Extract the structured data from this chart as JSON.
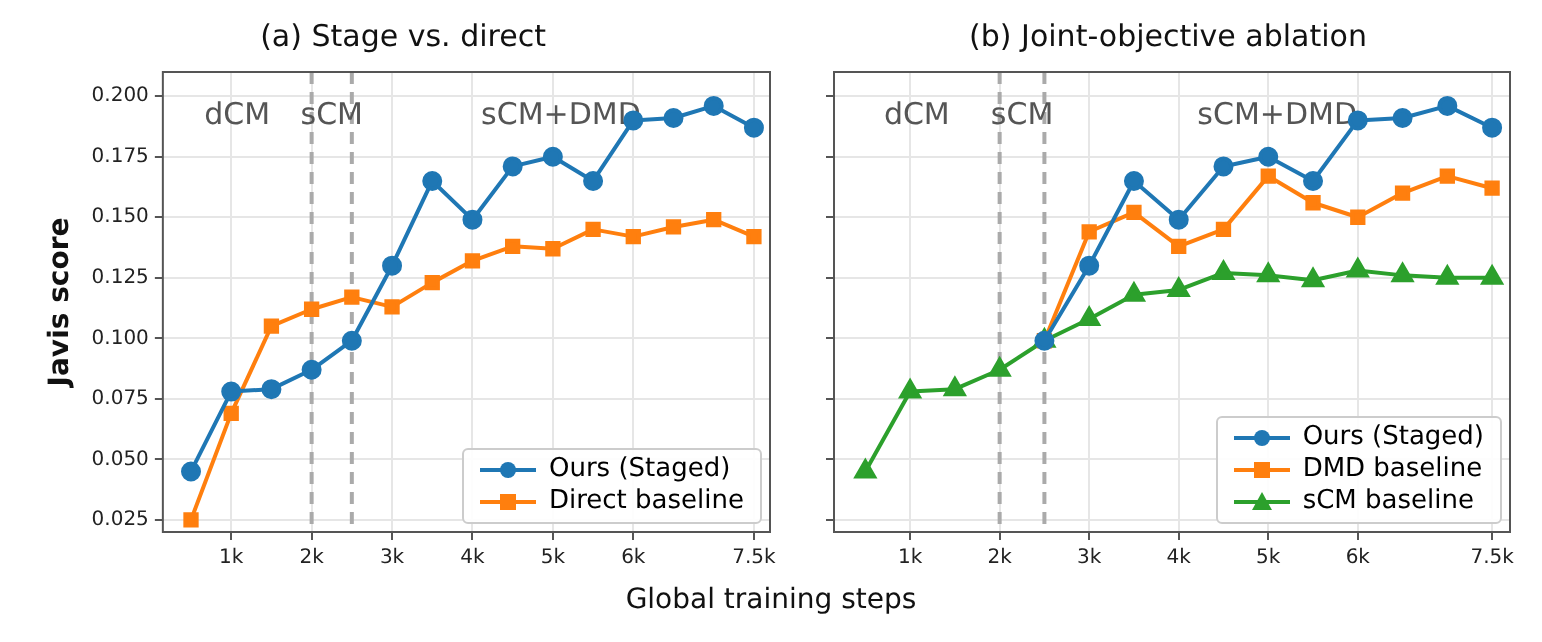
{
  "chart_data": [
    {
      "type": "line",
      "title": "(a) Stage vs. direct",
      "ylabel": "Javis score",
      "xlabel": "Global training steps",
      "x": [
        500,
        1000,
        1500,
        2000,
        2500,
        3000,
        3500,
        4000,
        4500,
        5000,
        5500,
        6000,
        6500,
        7000,
        7500
      ],
      "series": [
        {
          "name": "Ours (Staged)",
          "color": "#1f77b4",
          "marker": "circle",
          "values": [
            0.045,
            0.078,
            0.079,
            0.087,
            0.099,
            0.13,
            0.165,
            0.149,
            0.171,
            0.175,
            0.165,
            0.19,
            0.191,
            0.196,
            0.187
          ]
        },
        {
          "name": "Direct baseline",
          "color": "#ff7f0e",
          "marker": "square",
          "values": [
            0.025,
            0.069,
            0.105,
            0.112,
            0.117,
            0.113,
            0.123,
            0.132,
            0.138,
            0.137,
            0.145,
            0.142,
            0.146,
            0.149,
            0.142
          ]
        }
      ],
      "xlim": [
        150,
        7700
      ],
      "xticks": [
        {
          "value": 1000,
          "label": "1k"
        },
        {
          "value": 2000,
          "label": "2k"
        },
        {
          "value": 3000,
          "label": "3k"
        },
        {
          "value": 4000,
          "label": "4k"
        },
        {
          "value": 5000,
          "label": "5k"
        },
        {
          "value": 6000,
          "label": "6k"
        },
        {
          "value": 7500,
          "label": "7.5k"
        }
      ],
      "ylim": [
        0.02,
        0.21
      ],
      "yticks": [
        {
          "value": 0.025,
          "label": "0.025"
        },
        {
          "value": 0.05,
          "label": "0.050"
        },
        {
          "value": 0.075,
          "label": "0.075"
        },
        {
          "value": 0.1,
          "label": "0.100"
        },
        {
          "value": 0.125,
          "label": "0.125"
        },
        {
          "value": 0.15,
          "label": "0.150"
        },
        {
          "value": 0.175,
          "label": "0.175"
        },
        {
          "value": 0.2,
          "label": "0.200"
        }
      ],
      "ref_lines": [
        {
          "axis": "x",
          "value": 2000,
          "color": "#aaaaaa",
          "line_style": "dashed"
        },
        {
          "axis": "x",
          "value": 2500,
          "color": "#aaaaaa",
          "line_style": "dashed"
        }
      ],
      "annotations": [
        "dCM",
        "sCM",
        "sCM+DMD"
      ],
      "grid": true,
      "legend": "bottom right"
    },
    {
      "type": "line",
      "title": "(b) Joint-objective ablation",
      "x": [
        500,
        1000,
        1500,
        2000,
        2500,
        3000,
        3500,
        4000,
        4500,
        5000,
        5500,
        6000,
        6500,
        7000,
        7500
      ],
      "series": [
        {
          "name": "Ours (Staged)",
          "color": "#1f77b4",
          "marker": "circle",
          "values": [
            null,
            null,
            null,
            null,
            0.099,
            0.13,
            0.165,
            0.149,
            0.171,
            0.175,
            0.165,
            0.19,
            0.191,
            0.196,
            0.187
          ]
        },
        {
          "name": "DMD baseline",
          "color": "#ff7f0e",
          "marker": "square",
          "values": [
            null,
            null,
            null,
            null,
            0.099,
            0.144,
            0.152,
            0.138,
            0.145,
            0.167,
            0.156,
            0.15,
            0.16,
            0.167,
            0.162
          ]
        },
        {
          "name": "sCM baseline",
          "color": "#2ca02c",
          "marker": "triangle",
          "values": [
            0.045,
            0.078,
            0.079,
            0.087,
            0.099,
            0.108,
            0.118,
            0.12,
            0.127,
            0.126,
            0.124,
            0.128,
            0.126,
            0.125,
            0.125
          ]
        }
      ],
      "xlim": [
        150,
        7700
      ],
      "xticks": [
        {
          "value": 1000,
          "label": "1k"
        },
        {
          "value": 2000,
          "label": "2k"
        },
        {
          "value": 3000,
          "label": "3k"
        },
        {
          "value": 4000,
          "label": "4k"
        },
        {
          "value": 5000,
          "label": "5k"
        },
        {
          "value": 6000,
          "label": "6k"
        },
        {
          "value": 7500,
          "label": "7.5k"
        }
      ],
      "ylim": [
        0.02,
        0.21
      ],
      "yticks": [
        0.025,
        0.05,
        0.075,
        0.1,
        0.125,
        0.15,
        0.175,
        0.2
      ],
      "ref_lines": [
        {
          "axis": "x",
          "value": 2000,
          "color": "#aaaaaa",
          "line_style": "dashed"
        },
        {
          "axis": "x",
          "value": 2500,
          "color": "#aaaaaa",
          "line_style": "dashed"
        }
      ],
      "annotations": [
        "dCM",
        "sCM",
        "sCM+DMD"
      ],
      "grid": true,
      "legend": "bottom right",
      "tick_labels": "x"
    }
  ]
}
